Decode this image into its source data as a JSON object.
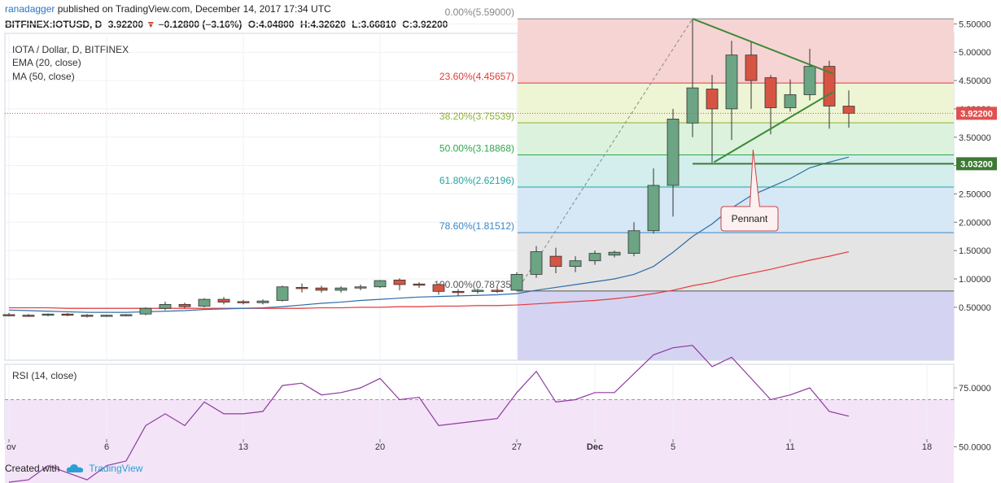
{
  "header": {
    "publisher": "ranadagger",
    "published_text": "published on TradingView.com, December 14, 2017 17:34 UTC",
    "symbol": "BITFINEX:IOTUSD, D",
    "last": "3.92200",
    "change_arrow": "▼",
    "change": "−0.12800 (−3.16%)",
    "open_label": "O:",
    "open": "4.04800",
    "high_label": "H:",
    "high": "4.32620",
    "low_label": "L:",
    "low": "3.66810",
    "close_label": "C:",
    "close": "3.92200"
  },
  "legend": {
    "title": "IOTA / Dollar, D, BITFINEX",
    "ema": "EMA (20, close)",
    "ma": "MA (50, close)"
  },
  "rsi": {
    "title": "RSI (14, close)"
  },
  "footer": {
    "created_with": "Created with",
    "brand": "TradingView"
  },
  "colors": {
    "up_fill": "#6ba583",
    "down_fill": "#d75442",
    "ema": "#2f6ca8",
    "ma": "#e53b3b",
    "trend": "#3d8a37",
    "rsi_line": "#8e3aa0",
    "rsi_band": "#f3e4f7",
    "price_tag": "#e05050",
    "support_tag": "#3d7a35"
  },
  "chart_data": [
    {
      "type": "candlestick",
      "title": "IOTA / Dollar, D, BITFINEX",
      "ylim": [
        0,
        5.9
      ],
      "y_ticks": [
        "0.50000",
        "1.00000",
        "1.50000",
        "2.00000",
        "2.50000",
        "3.00000",
        "3.50000",
        "4.00000",
        "4.50000",
        "5.00000",
        "5.50000"
      ],
      "x_ticks": [
        {
          "i": 0,
          "label": "ov"
        },
        {
          "i": 5,
          "label": "6"
        },
        {
          "i": 12,
          "label": "13"
        },
        {
          "i": 19,
          "label": "20"
        },
        {
          "i": 26,
          "label": "27"
        },
        {
          "i": 30,
          "label": "Dec"
        },
        {
          "i": 34,
          "label": "5"
        },
        {
          "i": 40,
          "label": "11"
        },
        {
          "i": 47,
          "label": "18"
        }
      ],
      "last_price_tag": "3.92200",
      "support_tag": "3.03200",
      "support_level": 3.032,
      "candles": [
        {
          "o": 0.37,
          "h": 0.4,
          "l": 0.34,
          "c": 0.36
        },
        {
          "o": 0.36,
          "h": 0.38,
          "l": 0.33,
          "c": 0.35
        },
        {
          "o": 0.36,
          "h": 0.39,
          "l": 0.34,
          "c": 0.38
        },
        {
          "o": 0.38,
          "h": 0.4,
          "l": 0.34,
          "c": 0.36
        },
        {
          "o": 0.36,
          "h": 0.38,
          "l": 0.32,
          "c": 0.34
        },
        {
          "o": 0.35,
          "h": 0.37,
          "l": 0.33,
          "c": 0.36
        },
        {
          "o": 0.36,
          "h": 0.38,
          "l": 0.34,
          "c": 0.37
        },
        {
          "o": 0.38,
          "h": 0.5,
          "l": 0.36,
          "c": 0.48
        },
        {
          "o": 0.48,
          "h": 0.6,
          "l": 0.45,
          "c": 0.55
        },
        {
          "o": 0.55,
          "h": 0.58,
          "l": 0.48,
          "c": 0.51
        },
        {
          "o": 0.52,
          "h": 0.66,
          "l": 0.5,
          "c": 0.64
        },
        {
          "o": 0.64,
          "h": 0.68,
          "l": 0.55,
          "c": 0.59
        },
        {
          "o": 0.6,
          "h": 0.63,
          "l": 0.55,
          "c": 0.58
        },
        {
          "o": 0.58,
          "h": 0.64,
          "l": 0.55,
          "c": 0.61
        },
        {
          "o": 0.62,
          "h": 0.88,
          "l": 0.6,
          "c": 0.86
        },
        {
          "o": 0.85,
          "h": 0.92,
          "l": 0.76,
          "c": 0.83
        },
        {
          "o": 0.84,
          "h": 0.88,
          "l": 0.76,
          "c": 0.8
        },
        {
          "o": 0.8,
          "h": 0.87,
          "l": 0.76,
          "c": 0.84
        },
        {
          "o": 0.84,
          "h": 0.9,
          "l": 0.8,
          "c": 0.86
        },
        {
          "o": 0.86,
          "h": 0.98,
          "l": 0.84,
          "c": 0.97
        },
        {
          "o": 0.98,
          "h": 1.01,
          "l": 0.8,
          "c": 0.9
        },
        {
          "o": 0.91,
          "h": 0.94,
          "l": 0.84,
          "c": 0.89
        },
        {
          "o": 0.9,
          "h": 0.92,
          "l": 0.72,
          "c": 0.78
        },
        {
          "o": 0.78,
          "h": 0.82,
          "l": 0.7,
          "c": 0.77
        },
        {
          "o": 0.78,
          "h": 0.83,
          "l": 0.74,
          "c": 0.8
        },
        {
          "o": 0.8,
          "h": 0.85,
          "l": 0.75,
          "c": 0.78
        },
        {
          "o": 0.8,
          "h": 1.12,
          "l": 0.78,
          "c": 1.08
        },
        {
          "o": 1.08,
          "h": 1.58,
          "l": 1.02,
          "c": 1.48
        },
        {
          "o": 1.4,
          "h": 1.55,
          "l": 1.1,
          "c": 1.22
        },
        {
          "o": 1.22,
          "h": 1.4,
          "l": 1.12,
          "c": 1.32
        },
        {
          "o": 1.32,
          "h": 1.5,
          "l": 1.25,
          "c": 1.45
        },
        {
          "o": 1.42,
          "h": 1.5,
          "l": 1.38,
          "c": 1.47
        },
        {
          "o": 1.45,
          "h": 2.0,
          "l": 1.4,
          "c": 1.85
        },
        {
          "o": 1.85,
          "h": 2.95,
          "l": 1.8,
          "c": 2.65
        },
        {
          "o": 2.65,
          "h": 4.0,
          "l": 2.1,
          "c": 3.82
        },
        {
          "o": 3.75,
          "h": 5.59,
          "l": 3.5,
          "c": 4.37
        },
        {
          "o": 4.35,
          "h": 4.6,
          "l": 3.05,
          "c": 4.0
        },
        {
          "o": 4.0,
          "h": 5.2,
          "l": 3.45,
          "c": 4.95
        },
        {
          "o": 4.95,
          "h": 5.18,
          "l": 4.0,
          "c": 4.5
        },
        {
          "o": 4.55,
          "h": 4.6,
          "l": 3.55,
          "c": 4.02
        },
        {
          "o": 4.02,
          "h": 4.52,
          "l": 3.95,
          "c": 4.25
        },
        {
          "o": 4.25,
          "h": 5.06,
          "l": 4.15,
          "c": 4.75
        },
        {
          "o": 4.75,
          "h": 4.85,
          "l": 3.65,
          "c": 4.05
        },
        {
          "o": 4.048,
          "h": 4.3262,
          "l": 3.6681,
          "c": 3.922
        }
      ],
      "ema20": [
        0.45,
        0.44,
        0.43,
        0.42,
        0.41,
        0.41,
        0.41,
        0.42,
        0.43,
        0.44,
        0.46,
        0.47,
        0.48,
        0.49,
        0.51,
        0.54,
        0.57,
        0.59,
        0.62,
        0.64,
        0.66,
        0.68,
        0.69,
        0.7,
        0.71,
        0.72,
        0.74,
        0.8,
        0.85,
        0.9,
        0.95,
        1.0,
        1.08,
        1.22,
        1.47,
        1.75,
        1.97,
        2.25,
        2.47,
        2.62,
        2.77,
        2.96,
        3.06,
        3.15
      ],
      "ma50": [
        0.49,
        0.49,
        0.49,
        0.48,
        0.48,
        0.48,
        0.48,
        0.48,
        0.48,
        0.48,
        0.48,
        0.48,
        0.48,
        0.48,
        0.48,
        0.48,
        0.49,
        0.49,
        0.5,
        0.5,
        0.51,
        0.51,
        0.52,
        0.52,
        0.53,
        0.53,
        0.54,
        0.56,
        0.58,
        0.6,
        0.62,
        0.65,
        0.69,
        0.74,
        0.8,
        0.88,
        0.94,
        1.03,
        1.1,
        1.17,
        1.25,
        1.33,
        1.4,
        1.48
      ],
      "fib": [
        {
          "label": "0.00%(5.59000)",
          "price": 5.59,
          "color": "#888888"
        },
        {
          "label": "23.60%(4.45657)",
          "price": 4.45657,
          "color": "#e03a3a"
        },
        {
          "label": "38.20%(3.75539)",
          "price": 3.75539,
          "color": "#8db33a"
        },
        {
          "label": "50.00%(3.18868)",
          "price": 3.18868,
          "color": "#2ea84a"
        },
        {
          "label": "61.80%(2.62196)",
          "price": 2.62196,
          "color": "#20a5a0"
        },
        {
          "label": "78.60%(1.81512)",
          "price": 1.81512,
          "color": "#3a86c8"
        },
        {
          "label": "100.00%(0.78735)",
          "price": 0.78735,
          "color": "#555555"
        }
      ],
      "fib_zone_colors": [
        "#f6d4d4",
        "#eef5d4",
        "#dcf2dc",
        "#d3eeec",
        "#d6e7f6",
        "#e4e4e4",
        "#d4d4f2"
      ],
      "annotation": "Pennant"
    },
    {
      "type": "line",
      "title": "RSI (14, close)",
      "ylim": [
        30,
        95
      ],
      "y_ticks": [
        "50.0000",
        "75.0000"
      ],
      "values": [
        35,
        36,
        42,
        39,
        36,
        42,
        44,
        59,
        64,
        59,
        69,
        64,
        64,
        65,
        76,
        77,
        72,
        73,
        75,
        79,
        70,
        71,
        59,
        60,
        61,
        62,
        73,
        82,
        69,
        70,
        73,
        73,
        81,
        89,
        92,
        93,
        84,
        88,
        79,
        70,
        72,
        75,
        65,
        63
      ]
    }
  ]
}
